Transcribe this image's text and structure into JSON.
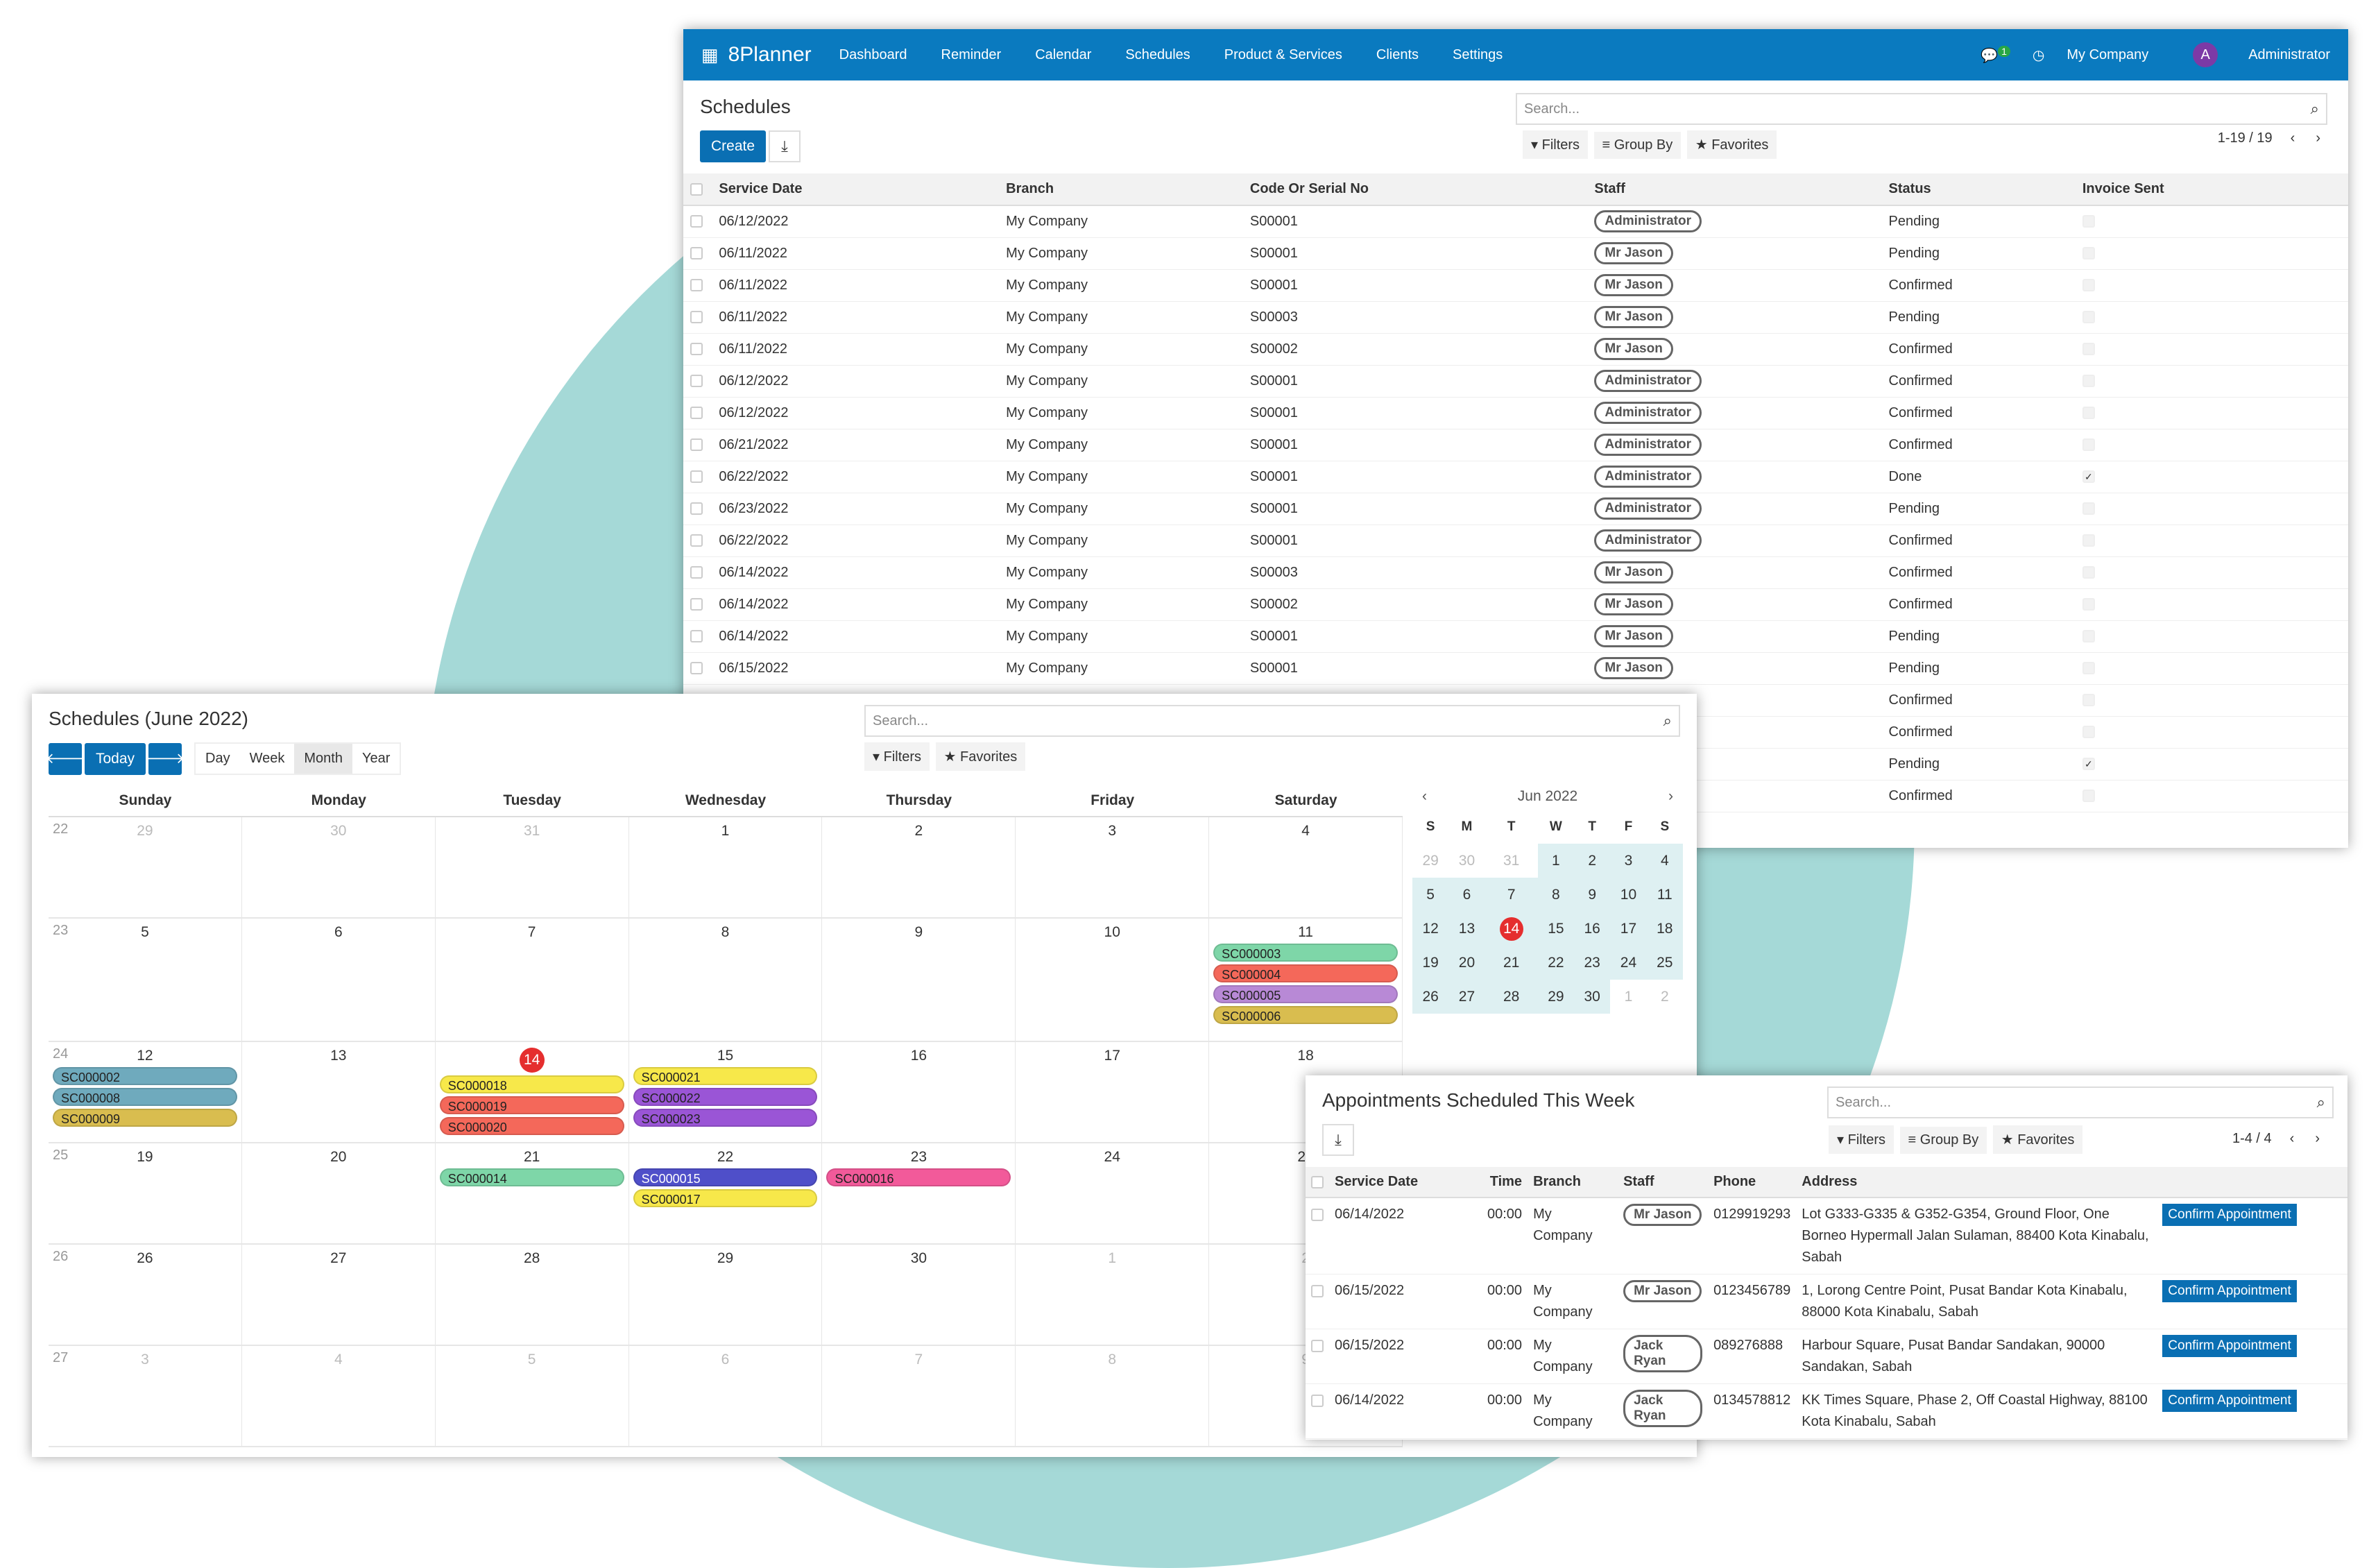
{
  "brand": "8Planner",
  "nav": [
    "Dashboard",
    "Reminder",
    "Calendar",
    "Schedules",
    "Product & Services",
    "Clients",
    "Settings"
  ],
  "nav_right": {
    "chat_badge": "1",
    "company": "My Company",
    "user": "Administrator",
    "avatar_letter": "A"
  },
  "schedules": {
    "title": "Schedules",
    "search_placeholder": "Search...",
    "create": "Create",
    "filters": "Filters",
    "group_by": "Group By",
    "favorites": "Favorites",
    "pager": "1-19 / 19",
    "columns": [
      "Service Date",
      "Branch",
      "Code Or Serial No",
      "Staff",
      "Status",
      "Invoice Sent"
    ],
    "rows": [
      [
        "06/12/2022",
        "My Company",
        "S00001",
        "Administrator",
        "Pending",
        false
      ],
      [
        "06/11/2022",
        "My Company",
        "S00001",
        "Mr Jason",
        "Pending",
        false
      ],
      [
        "06/11/2022",
        "My Company",
        "S00001",
        "Mr Jason",
        "Confirmed",
        false
      ],
      [
        "06/11/2022",
        "My Company",
        "S00003",
        "Mr Jason",
        "Pending",
        false
      ],
      [
        "06/11/2022",
        "My Company",
        "S00002",
        "Mr Jason",
        "Confirmed",
        false
      ],
      [
        "06/12/2022",
        "My Company",
        "S00001",
        "Administrator",
        "Confirmed",
        false
      ],
      [
        "06/12/2022",
        "My Company",
        "S00001",
        "Administrator",
        "Confirmed",
        false
      ],
      [
        "06/21/2022",
        "My Company",
        "S00001",
        "Administrator",
        "Confirmed",
        false
      ],
      [
        "06/22/2022",
        "My Company",
        "S00001",
        "Administrator",
        "Done",
        true
      ],
      [
        "06/23/2022",
        "My Company",
        "S00001",
        "Administrator",
        "Pending",
        false
      ],
      [
        "06/22/2022",
        "My Company",
        "S00001",
        "Administrator",
        "Confirmed",
        false
      ],
      [
        "06/14/2022",
        "My Company",
        "S00003",
        "Mr Jason",
        "Confirmed",
        false
      ],
      [
        "06/14/2022",
        "My Company",
        "S00002",
        "Mr Jason",
        "Confirmed",
        false
      ],
      [
        "06/14/2022",
        "My Company",
        "S00001",
        "Mr Jason",
        "Pending",
        false
      ],
      [
        "06/15/2022",
        "My Company",
        "S00001",
        "Mr Jason",
        "Pending",
        false
      ],
      [
        "",
        "",
        "",
        "",
        "Confirmed",
        false
      ],
      [
        "",
        "",
        "",
        "",
        "Confirmed",
        false
      ],
      [
        "",
        "",
        "",
        "",
        "Pending",
        true
      ],
      [
        "",
        "",
        "",
        "",
        "Confirmed",
        false
      ]
    ]
  },
  "calendar": {
    "title": "Schedules (June 2022)",
    "today": "Today",
    "views": [
      "Day",
      "Week",
      "Month",
      "Year"
    ],
    "active_view": "Month",
    "search_placeholder": "Search...",
    "filters": "Filters",
    "favorites": "Favorites",
    "weekdays": [
      "Sunday",
      "Monday",
      "Tuesday",
      "Wednesday",
      "Thursday",
      "Friday",
      "Saturday"
    ],
    "weeks": [
      {
        "wk": "22",
        "days": [
          [
            "29",
            1
          ],
          [
            "30",
            1
          ],
          [
            "31",
            1
          ],
          [
            "1",
            0
          ],
          [
            "2",
            0
          ],
          [
            "3",
            0
          ],
          [
            "4",
            0
          ]
        ]
      },
      {
        "wk": "23",
        "days": [
          [
            "5",
            0
          ],
          [
            "6",
            0
          ],
          [
            "7",
            0
          ],
          [
            "8",
            0
          ],
          [
            "9",
            0
          ],
          [
            "10",
            0
          ],
          [
            "11",
            0
          ]
        ]
      },
      {
        "wk": "24",
        "days": [
          [
            "12",
            0
          ],
          [
            "13",
            0
          ],
          [
            "14",
            2
          ],
          [
            "15",
            0
          ],
          [
            "16",
            0
          ],
          [
            "17",
            0
          ],
          [
            "18",
            0
          ]
        ]
      },
      {
        "wk": "25",
        "days": [
          [
            "19",
            0
          ],
          [
            "20",
            0
          ],
          [
            "21",
            0
          ],
          [
            "22",
            0
          ],
          [
            "23",
            0
          ],
          [
            "24",
            0
          ],
          [
            "25",
            0
          ]
        ]
      },
      {
        "wk": "26",
        "days": [
          [
            "26",
            0
          ],
          [
            "27",
            0
          ],
          [
            "28",
            0
          ],
          [
            "29",
            0
          ],
          [
            "30",
            0
          ],
          [
            "1",
            1
          ],
          [
            "2",
            1
          ]
        ]
      },
      {
        "wk": "27",
        "days": [
          [
            "3",
            1
          ],
          [
            "4",
            1
          ],
          [
            "5",
            1
          ],
          [
            "6",
            1
          ],
          [
            "7",
            1
          ],
          [
            "8",
            1
          ],
          [
            "9",
            1
          ]
        ]
      }
    ],
    "events": [
      {
        "w": 1,
        "d": 6,
        "items": [
          [
            "SC000003",
            "#7ed6a8"
          ],
          [
            "SC000004",
            "#f4685a"
          ],
          [
            "SC000005",
            "#b889d6"
          ],
          [
            "SC000006",
            "#d9bd4f"
          ]
        ]
      },
      {
        "w": 2,
        "d": 0,
        "items": [
          [
            "SC000002",
            "#6faabd"
          ],
          [
            "SC000008",
            "#6faabd"
          ],
          [
            "SC000009",
            "#d9bd4f"
          ]
        ]
      },
      {
        "w": 2,
        "d": 2,
        "items": [
          [
            "SC000018",
            "#f7e84a"
          ],
          [
            "SC000019",
            "#f4685a"
          ],
          [
            "SC000020",
            "#f4685a"
          ]
        ]
      },
      {
        "w": 2,
        "d": 3,
        "items": [
          [
            "SC000021",
            "#f7e84a"
          ],
          [
            "SC000022",
            "#9a55d6"
          ],
          [
            "SC000023",
            "#9a55d6"
          ]
        ]
      },
      {
        "w": 3,
        "d": 2,
        "items": [
          [
            "SC000014",
            "#7ed6a8"
          ]
        ]
      },
      {
        "w": 3,
        "d": 3,
        "items": [
          [
            "SC000015",
            "#4f4fc9"
          ],
          [
            "SC000017",
            "#f7e84a"
          ]
        ]
      },
      {
        "w": 3,
        "d": 4,
        "items": [
          [
            "SC000016",
            "#f25a9a"
          ]
        ]
      }
    ],
    "mini": {
      "month": "Jun 2022",
      "dows": [
        "S",
        "M",
        "T",
        "W",
        "T",
        "F",
        "S"
      ],
      "rows": [
        [
          [
            "29",
            1
          ],
          [
            "30",
            1
          ],
          [
            "31",
            1
          ],
          [
            "1",
            0
          ],
          [
            "2",
            0
          ],
          [
            "3",
            0
          ],
          [
            "4",
            0
          ]
        ],
        [
          [
            "5",
            0
          ],
          [
            "6",
            0
          ],
          [
            "7",
            0
          ],
          [
            "8",
            0
          ],
          [
            "9",
            0
          ],
          [
            "10",
            0
          ],
          [
            "11",
            0
          ]
        ],
        [
          [
            "12",
            0
          ],
          [
            "13",
            0
          ],
          [
            "14",
            2
          ],
          [
            "15",
            0
          ],
          [
            "16",
            0
          ],
          [
            "17",
            0
          ],
          [
            "18",
            0
          ]
        ],
        [
          [
            "19",
            0
          ],
          [
            "20",
            0
          ],
          [
            "21",
            0
          ],
          [
            "22",
            0
          ],
          [
            "23",
            0
          ],
          [
            "24",
            0
          ],
          [
            "25",
            0
          ]
        ],
        [
          [
            "26",
            0
          ],
          [
            "27",
            0
          ],
          [
            "28",
            0
          ],
          [
            "29",
            0
          ],
          [
            "30",
            0
          ],
          [
            "1",
            1
          ],
          [
            "2",
            1
          ]
        ]
      ]
    }
  },
  "appointments": {
    "title": "Appointments Scheduled This Week",
    "search_placeholder": "Search...",
    "filters": "Filters",
    "group_by": "Group By",
    "favorites": "Favorites",
    "pager": "1-4 / 4",
    "columns": [
      "Service Date",
      "Time",
      "Branch",
      "Staff",
      "Phone",
      "Address"
    ],
    "action": "Confirm Appointment",
    "rows": [
      [
        "06/14/2022",
        "00:00",
        "My Company",
        "Mr Jason",
        "0129919293",
        "Lot G333-G335 & G352-G354, Ground Floor, One Borneo Hypermall Jalan Sulaman, 88400 Kota Kinabalu, Sabah"
      ],
      [
        "06/15/2022",
        "00:00",
        "My Company",
        "Mr Jason",
        "0123456789",
        "1, Lorong Centre Point, Pusat Bandar Kota Kinabalu, 88000 Kota Kinabalu, Sabah"
      ],
      [
        "06/15/2022",
        "00:00",
        "My Company",
        "Jack Ryan",
        "089276888",
        "Harbour Square, Pusat Bandar Sandakan, 90000 Sandakan, Sabah"
      ],
      [
        "06/14/2022",
        "00:00",
        "My Company",
        "Jack Ryan",
        "0134578812",
        "KK Times Square, Phase 2, Off Coastal Highway, 88100 Kota Kinabalu, Sabah"
      ]
    ]
  }
}
